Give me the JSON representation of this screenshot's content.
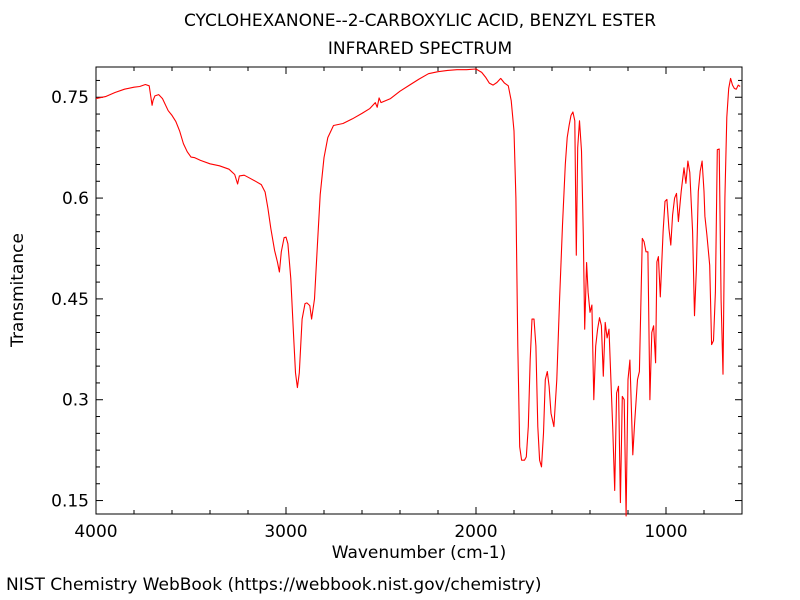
{
  "chart_data": {
    "type": "line",
    "title": "CYCLOHEXANONE--2-CARBOXYLIC ACID, BENZYL ESTER",
    "subtitle": "INFRARED SPECTRUM",
    "xlabel": "Wavenumber (cm-1)",
    "ylabel": "Transmitance",
    "xlim": [
      4000,
      600
    ],
    "ylim": [
      0.13,
      0.795
    ],
    "x_ticks": [
      4000,
      3000,
      2000,
      1000
    ],
    "x_tick_labels": [
      "4000",
      "3000",
      "2000",
      "1000"
    ],
    "y_ticks": [
      0.15,
      0.3,
      0.45,
      0.6,
      0.75
    ],
    "y_tick_labels": [
      "0.15",
      "0.3",
      "0.45",
      "0.6",
      "0.75"
    ],
    "grid": false,
    "line_color": "#ff0000",
    "series": [
      {
        "points": [
          [
            4000,
            0.748
          ],
          [
            3950,
            0.751
          ],
          [
            3900,
            0.757
          ],
          [
            3850,
            0.762
          ],
          [
            3800,
            0.765
          ],
          [
            3770,
            0.766
          ],
          [
            3740,
            0.769
          ],
          [
            3720,
            0.767
          ],
          [
            3705,
            0.738
          ],
          [
            3700,
            0.745
          ],
          [
            3690,
            0.752
          ],
          [
            3670,
            0.754
          ],
          [
            3650,
            0.748
          ],
          [
            3620,
            0.73
          ],
          [
            3600,
            0.723
          ],
          [
            3580,
            0.714
          ],
          [
            3560,
            0.7
          ],
          [
            3540,
            0.681
          ],
          [
            3520,
            0.669
          ],
          [
            3500,
            0.661
          ],
          [
            3480,
            0.66
          ],
          [
            3450,
            0.656
          ],
          [
            3400,
            0.651
          ],
          [
            3350,
            0.648
          ],
          [
            3300,
            0.643
          ],
          [
            3270,
            0.635
          ],
          [
            3255,
            0.621
          ],
          [
            3245,
            0.633
          ],
          [
            3220,
            0.634
          ],
          [
            3200,
            0.631
          ],
          [
            3160,
            0.625
          ],
          [
            3130,
            0.62
          ],
          [
            3110,
            0.609
          ],
          [
            3095,
            0.585
          ],
          [
            3080,
            0.555
          ],
          [
            3060,
            0.522
          ],
          [
            3045,
            0.505
          ],
          [
            3035,
            0.49
          ],
          [
            3025,
            0.52
          ],
          [
            3010,
            0.541
          ],
          [
            3000,
            0.542
          ],
          [
            2990,
            0.532
          ],
          [
            2975,
            0.48
          ],
          [
            2960,
            0.395
          ],
          [
            2950,
            0.34
          ],
          [
            2940,
            0.318
          ],
          [
            2930,
            0.34
          ],
          [
            2915,
            0.42
          ],
          [
            2900,
            0.443
          ],
          [
            2890,
            0.444
          ],
          [
            2875,
            0.44
          ],
          [
            2865,
            0.42
          ],
          [
            2850,
            0.45
          ],
          [
            2835,
            0.53
          ],
          [
            2820,
            0.605
          ],
          [
            2800,
            0.66
          ],
          [
            2780,
            0.69
          ],
          [
            2750,
            0.708
          ],
          [
            2700,
            0.711
          ],
          [
            2650,
            0.718
          ],
          [
            2600,
            0.726
          ],
          [
            2560,
            0.733
          ],
          [
            2530,
            0.742
          ],
          [
            2520,
            0.735
          ],
          [
            2510,
            0.749
          ],
          [
            2500,
            0.742
          ],
          [
            2450,
            0.748
          ],
          [
            2400,
            0.759
          ],
          [
            2350,
            0.768
          ],
          [
            2300,
            0.777
          ],
          [
            2250,
            0.785
          ],
          [
            2200,
            0.788
          ],
          [
            2150,
            0.79
          ],
          [
            2100,
            0.791
          ],
          [
            2050,
            0.791
          ],
          [
            2000,
            0.792
          ],
          [
            1970,
            0.787
          ],
          [
            1950,
            0.78
          ],
          [
            1930,
            0.771
          ],
          [
            1910,
            0.768
          ],
          [
            1890,
            0.772
          ],
          [
            1870,
            0.778
          ],
          [
            1850,
            0.771
          ],
          [
            1830,
            0.767
          ],
          [
            1815,
            0.745
          ],
          [
            1800,
            0.7
          ],
          [
            1790,
            0.6
          ],
          [
            1780,
            0.38
          ],
          [
            1770,
            0.23
          ],
          [
            1760,
            0.21
          ],
          [
            1745,
            0.21
          ],
          [
            1735,
            0.215
          ],
          [
            1725,
            0.26
          ],
          [
            1715,
            0.36
          ],
          [
            1705,
            0.42
          ],
          [
            1695,
            0.42
          ],
          [
            1685,
            0.38
          ],
          [
            1675,
            0.26
          ],
          [
            1665,
            0.21
          ],
          [
            1655,
            0.2
          ],
          [
            1645,
            0.25
          ],
          [
            1635,
            0.33
          ],
          [
            1625,
            0.342
          ],
          [
            1615,
            0.32
          ],
          [
            1605,
            0.28
          ],
          [
            1590,
            0.26
          ],
          [
            1575,
            0.33
          ],
          [
            1560,
            0.45
          ],
          [
            1545,
            0.56
          ],
          [
            1530,
            0.65
          ],
          [
            1520,
            0.69
          ],
          [
            1510,
            0.708
          ],
          [
            1500,
            0.723
          ],
          [
            1490,
            0.728
          ],
          [
            1480,
            0.715
          ],
          [
            1472,
            0.515
          ],
          [
            1465,
            0.675
          ],
          [
            1455,
            0.715
          ],
          [
            1445,
            0.67
          ],
          [
            1435,
            0.545
          ],
          [
            1428,
            0.405
          ],
          [
            1418,
            0.504
          ],
          [
            1410,
            0.46
          ],
          [
            1400,
            0.43
          ],
          [
            1390,
            0.441
          ],
          [
            1380,
            0.3
          ],
          [
            1370,
            0.38
          ],
          [
            1360,
            0.405
          ],
          [
            1350,
            0.422
          ],
          [
            1340,
            0.41
          ],
          [
            1330,
            0.335
          ],
          [
            1320,
            0.415
          ],
          [
            1310,
            0.392
          ],
          [
            1300,
            0.405
          ],
          [
            1290,
            0.33
          ],
          [
            1280,
            0.255
          ],
          [
            1270,
            0.165
          ],
          [
            1260,
            0.31
          ],
          [
            1250,
            0.32
          ],
          [
            1240,
            0.147
          ],
          [
            1230,
            0.305
          ],
          [
            1220,
            0.3
          ],
          [
            1210,
            0.127
          ],
          [
            1200,
            0.33
          ],
          [
            1190,
            0.359
          ],
          [
            1175,
            0.218
          ],
          [
            1165,
            0.265
          ],
          [
            1150,
            0.33
          ],
          [
            1140,
            0.342
          ],
          [
            1125,
            0.54
          ],
          [
            1115,
            0.535
          ],
          [
            1105,
            0.52
          ],
          [
            1095,
            0.52
          ],
          [
            1085,
            0.3
          ],
          [
            1075,
            0.4
          ],
          [
            1065,
            0.41
          ],
          [
            1055,
            0.355
          ],
          [
            1048,
            0.505
          ],
          [
            1040,
            0.513
          ],
          [
            1030,
            0.453
          ],
          [
            1015,
            0.55
          ],
          [
            1005,
            0.595
          ],
          [
            995,
            0.598
          ],
          [
            985,
            0.555
          ],
          [
            975,
            0.53
          ],
          [
            965,
            0.575
          ],
          [
            955,
            0.6
          ],
          [
            945,
            0.607
          ],
          [
            935,
            0.565
          ],
          [
            920,
            0.61
          ],
          [
            905,
            0.645
          ],
          [
            895,
            0.622
          ],
          [
            885,
            0.655
          ],
          [
            875,
            0.638
          ],
          [
            860,
            0.55
          ],
          [
            850,
            0.425
          ],
          [
            840,
            0.495
          ],
          [
            830,
            0.61
          ],
          [
            820,
            0.64
          ],
          [
            810,
            0.655
          ],
          [
            800,
            0.61
          ],
          [
            795,
            0.573
          ],
          [
            785,
            0.545
          ],
          [
            770,
            0.5
          ],
          [
            760,
            0.382
          ],
          [
            750,
            0.388
          ],
          [
            740,
            0.46
          ],
          [
            730,
            0.672
          ],
          [
            720,
            0.673
          ],
          [
            710,
            0.448
          ],
          [
            700,
            0.338
          ],
          [
            690,
            0.6
          ],
          [
            680,
            0.72
          ],
          [
            670,
            0.763
          ],
          [
            660,
            0.778
          ],
          [
            650,
            0.768
          ],
          [
            640,
            0.763
          ],
          [
            630,
            0.762
          ],
          [
            620,
            0.768
          ],
          [
            610,
            0.766
          ]
        ]
      }
    ]
  },
  "footer": {
    "credit": "NIST Chemistry WebBook (https://webbook.nist.gov/chemistry)"
  }
}
